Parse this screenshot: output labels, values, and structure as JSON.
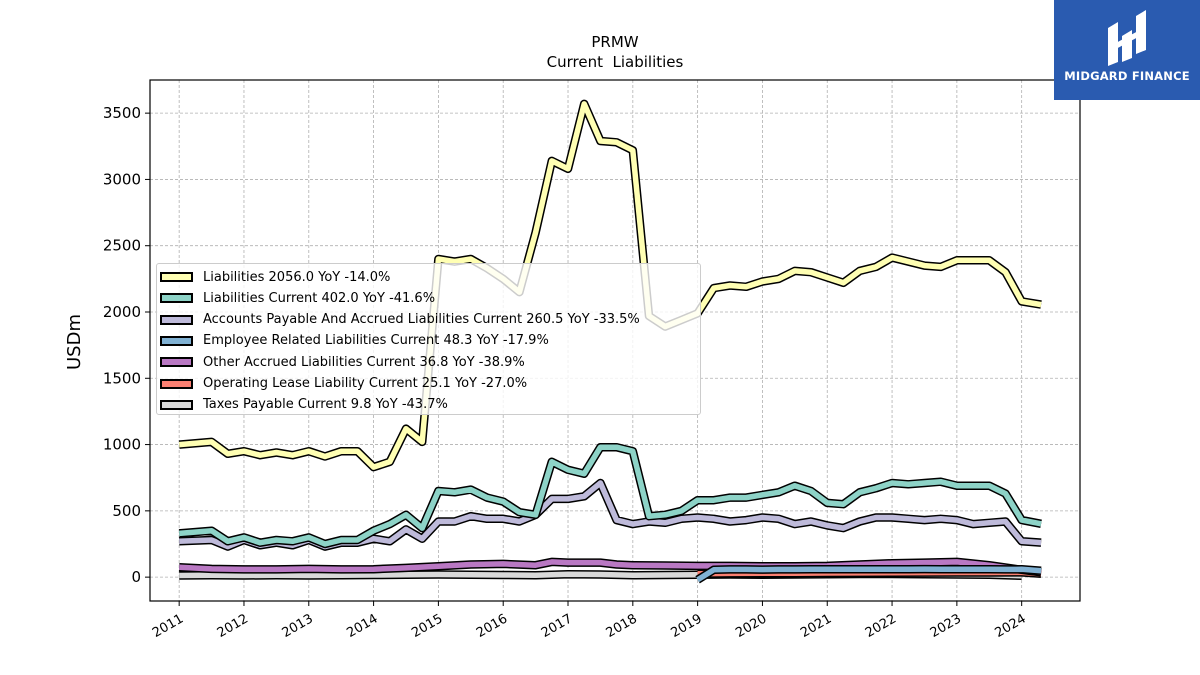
{
  "logo": {
    "text": "MIDGARD FINANCE",
    "color": "#2a5bb0"
  },
  "chart_data": {
    "type": "line",
    "title": "PRMW",
    "subtitle": "Current  Liabilities",
    "ylabel": "USDm",
    "xlabel": "",
    "ylim": [
      -180,
      3750
    ],
    "xlim": [
      2010.55,
      2024.9
    ],
    "yticks": [
      0,
      500,
      1000,
      1500,
      2000,
      2500,
      3000,
      3500
    ],
    "xticks": [
      "2011",
      "2012",
      "2013",
      "2014",
      "2015",
      "2016",
      "2017",
      "2018",
      "2019",
      "2020",
      "2021",
      "2022",
      "2023",
      "2024"
    ],
    "grid": true,
    "legend_position": "center-left",
    "series": [
      {
        "name": "Liabilities  2056.0 YoY -14.0%",
        "color": "#ffffb3",
        "x": [
          2011.0,
          2011.5,
          2011.75,
          2012.0,
          2012.25,
          2012.5,
          2012.75,
          2013.0,
          2013.25,
          2013.5,
          2013.75,
          2014.0,
          2014.25,
          2014.5,
          2014.75,
          2015.0,
          2015.25,
          2015.5,
          2015.75,
          2016.0,
          2016.25,
          2016.5,
          2016.75,
          2017.0,
          2017.25,
          2017.5,
          2017.75,
          2018.0,
          2018.25,
          2018.5,
          2018.75,
          2019.0,
          2019.25,
          2019.5,
          2019.75,
          2020.0,
          2020.25,
          2020.5,
          2020.75,
          2021.0,
          2021.25,
          2021.5,
          2021.75,
          2022.0,
          2022.25,
          2022.5,
          2022.75,
          2023.0,
          2023.25,
          2023.5,
          2023.75,
          2024.0,
          2024.3
        ],
        "values": [
          1000,
          1020,
          930,
          950,
          920,
          940,
          920,
          950,
          910,
          950,
          950,
          830,
          870,
          1120,
          1020,
          2400,
          2380,
          2400,
          2330,
          2250,
          2150,
          2600,
          3140,
          3080,
          3570,
          3290,
          3280,
          3220,
          1970,
          1890,
          1940,
          1990,
          2180,
          2200,
          2190,
          2230,
          2250,
          2310,
          2300,
          2260,
          2220,
          2310,
          2340,
          2410,
          2380,
          2350,
          2340,
          2390,
          2390,
          2390,
          2300,
          2080,
          2056
        ]
      },
      {
        "name": "Liabilities Current  402.0 YoY -41.6%",
        "color": "#8dd3c7",
        "x": [
          2011.0,
          2011.5,
          2011.75,
          2012.0,
          2012.25,
          2012.5,
          2012.75,
          2013.0,
          2013.25,
          2013.5,
          2013.75,
          2014.0,
          2014.25,
          2014.5,
          2014.75,
          2015.0,
          2015.25,
          2015.5,
          2015.75,
          2016.0,
          2016.25,
          2016.5,
          2016.75,
          2017.0,
          2017.25,
          2017.5,
          2017.75,
          2018.0,
          2018.25,
          2018.5,
          2018.75,
          2019.0,
          2019.25,
          2019.5,
          2019.75,
          2020.0,
          2020.25,
          2020.5,
          2020.75,
          2021.0,
          2021.25,
          2021.5,
          2021.75,
          2022.0,
          2022.25,
          2022.5,
          2022.75,
          2023.0,
          2023.25,
          2023.5,
          2023.75,
          2024.0,
          2024.3
        ],
        "values": [
          330,
          350,
          270,
          300,
          260,
          280,
          270,
          300,
          250,
          280,
          280,
          350,
          400,
          470,
          370,
          650,
          640,
          660,
          600,
          570,
          490,
          470,
          870,
          810,
          780,
          980,
          980,
          950,
          460,
          470,
          500,
          580,
          580,
          600,
          600,
          620,
          640,
          690,
          650,
          560,
          550,
          640,
          670,
          710,
          700,
          710,
          720,
          690,
          690,
          690,
          630,
          430,
          402
        ]
      },
      {
        "name": "Accounts Payable And Accrued Liabilities Current  260.5 YoY -33.5%",
        "color": "#bebada",
        "x": [
          2011.0,
          2011.5,
          2011.75,
          2012.0,
          2012.25,
          2012.5,
          2012.75,
          2013.0,
          2013.25,
          2013.5,
          2013.75,
          2014.0,
          2014.25,
          2014.5,
          2014.75,
          2015.0,
          2015.25,
          2015.5,
          2015.75,
          2016.0,
          2016.25,
          2016.5,
          2016.75,
          2017.0,
          2017.25,
          2017.5,
          2017.75,
          2018.0,
          2018.25,
          2018.5,
          2018.75,
          2019.0,
          2019.25,
          2019.5,
          2019.75,
          2020.0,
          2020.25,
          2020.5,
          2020.75,
          2021.0,
          2021.25,
          2021.5,
          2021.75,
          2022.0,
          2022.25,
          2022.5,
          2022.75,
          2023.0,
          2023.25,
          2023.5,
          2023.75,
          2024.0,
          2024.3
        ],
        "values": [
          270,
          280,
          230,
          280,
          240,
          260,
          240,
          280,
          230,
          260,
          260,
          290,
          270,
          360,
          290,
          420,
          420,
          460,
          440,
          440,
          420,
          470,
          590,
          590,
          610,
          710,
          430,
          400,
          420,
          410,
          440,
          450,
          440,
          420,
          430,
          450,
          440,
          400,
          420,
          390,
          370,
          420,
          450,
          450,
          440,
          430,
          440,
          430,
          400,
          410,
          420,
          270,
          260.5
        ]
      },
      {
        "name": "Employee Related Liabilities Current  48.3 YoY -17.9%",
        "color": "#80b1d3",
        "x": [
          2019.0,
          2019.25,
          2019.5,
          2019.75,
          2020.0,
          2020.25,
          2020.5,
          2020.75,
          2021.0,
          2021.25,
          2021.5,
          2021.75,
          2022.0,
          2022.25,
          2022.5,
          2022.75,
          2023.0,
          2023.25,
          2023.5,
          2023.75,
          2024.0,
          2024.3
        ],
        "values": [
          -20,
          55,
          58,
          58,
          57,
          58,
          58,
          59,
          60,
          60,
          60,
          59,
          59,
          60,
          61,
          60,
          60,
          59,
          59,
          58,
          59,
          48.3
        ]
      },
      {
        "name": "Other Accrued Liabilities Current  36.8 YoY -38.9%",
        "color": "#b978c3",
        "x": [
          2011.0,
          2011.5,
          2012.0,
          2012.5,
          2013.0,
          2013.5,
          2014.0,
          2014.5,
          2015.0,
          2015.5,
          2016.0,
          2016.5,
          2016.75,
          2017.0,
          2017.5,
          2017.75,
          2018.0,
          2018.5,
          2019.0,
          2019.5,
          2020.0,
          2020.5,
          2021.0,
          2021.5,
          2022.0,
          2022.5,
          2023.0,
          2023.5,
          2024.0,
          2024.3
        ],
        "values": [
          75,
          62,
          58,
          58,
          62,
          58,
          60,
          70,
          82,
          95,
          100,
          90,
          115,
          110,
          110,
          95,
          90,
          88,
          85,
          85,
          82,
          82,
          85,
          95,
          105,
          110,
          115,
          90,
          55,
          36.8
        ]
      },
      {
        "name": "Operating Lease Liability Current  25.1 YoY -27.0%",
        "color": "#fb8072",
        "x": [
          2019.0,
          2019.5,
          2020.0,
          2020.5,
          2021.0,
          2021.5,
          2022.0,
          2022.5,
          2023.0,
          2023.5,
          2024.0,
          2024.3
        ],
        "values": [
          25,
          28,
          30,
          30,
          31,
          32,
          33,
          34,
          35,
          35,
          36,
          25.1
        ]
      },
      {
        "name": "Taxes Payable Current  9.8 YoY -43.7%",
        "color": "#d9d9d9",
        "x": [
          2011.0,
          2011.5,
          2012.0,
          2012.5,
          2013.0,
          2013.5,
          2014.0,
          2014.5,
          2015.0,
          2015.5,
          2016.0,
          2016.5,
          2017.0,
          2017.5,
          2018.0,
          2018.5,
          2019.0,
          2019.5,
          2020.0,
          2020.5,
          2021.0,
          2021.5,
          2022.0,
          2022.5,
          2023.0,
          2023.5,
          2024.0
        ],
        "values": [
          12,
          14,
          12,
          14,
          12,
          14,
          16,
          18,
          20,
          18,
          16,
          14,
          22,
          20,
          14,
          16,
          18,
          20,
          18,
          20,
          22,
          24,
          24,
          22,
          20,
          18,
          9.8
        ]
      }
    ]
  }
}
